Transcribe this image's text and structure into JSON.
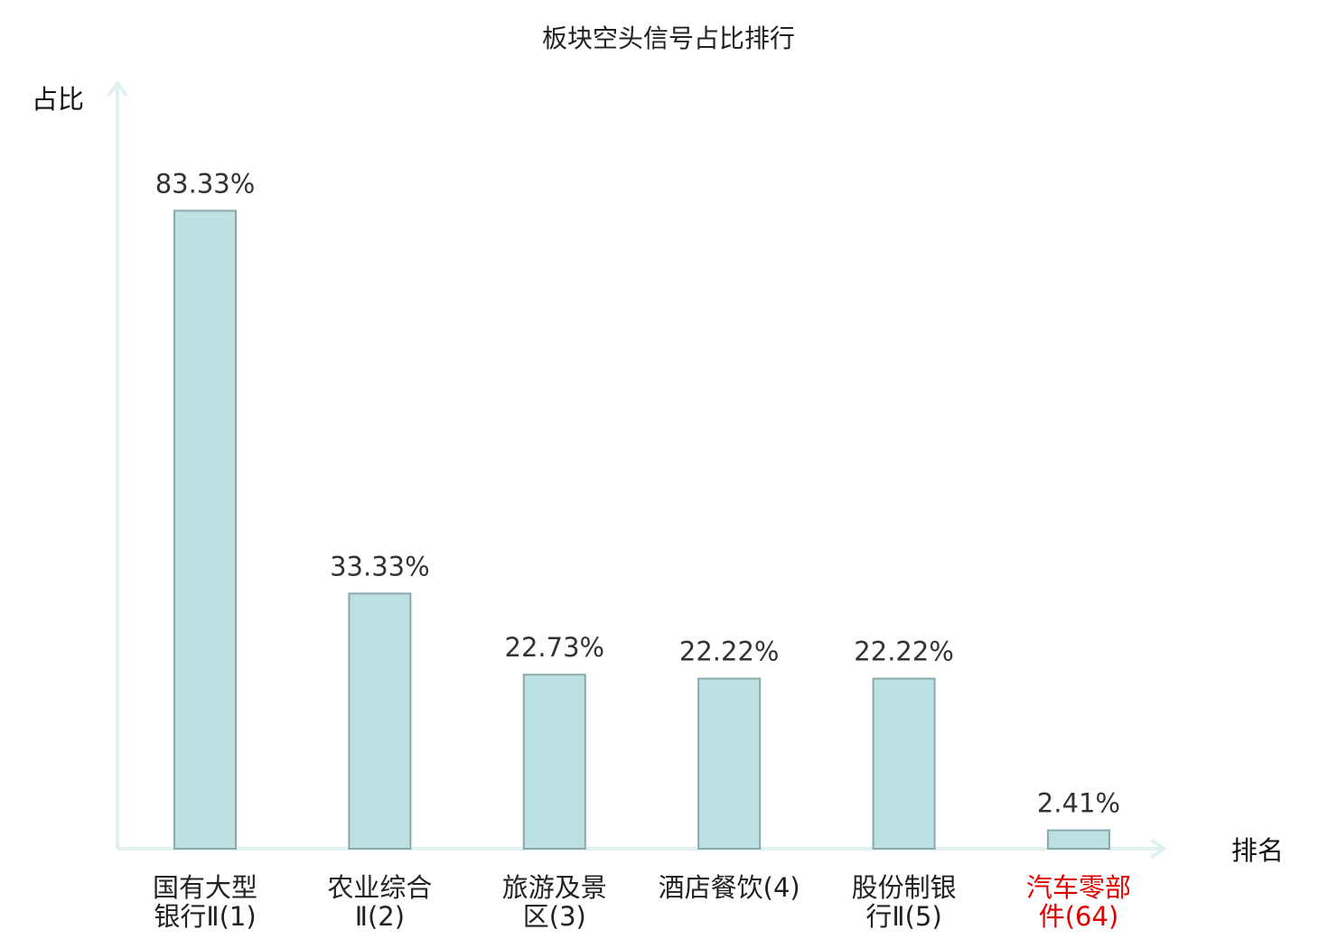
{
  "chart_data": {
    "type": "bar",
    "title": "板块空头信号占比排行",
    "ylabel": "占比",
    "xlabel": "排名",
    "ylim": [
      0,
      100
    ],
    "grid": false,
    "categories": [
      [
        "国有大型",
        "银行Ⅱ(1)"
      ],
      [
        "农业综合",
        "Ⅱ(2)"
      ],
      [
        "旅游及景",
        "区(3)"
      ],
      [
        "酒店餐饮(4)"
      ],
      [
        "股份制银",
        "行Ⅱ(5)"
      ],
      [
        "汽车零部",
        "件(64)"
      ]
    ],
    "values": [
      83.33,
      33.33,
      22.73,
      22.22,
      22.22,
      2.41
    ],
    "value_labels": [
      "83.33%",
      "33.33%",
      "22.73%",
      "22.22%",
      "22.22%",
      "2.41%"
    ],
    "highlight_index": 5,
    "colors": {
      "bar_fill": "#bde0e3",
      "bar_stroke": "#8aa9ab",
      "axis": "#dff2ef",
      "highlight_text": "#e00000",
      "text": "#222222"
    }
  }
}
